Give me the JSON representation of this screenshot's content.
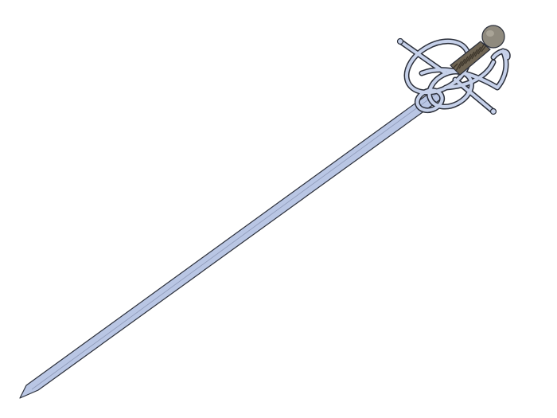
{
  "illustration": {
    "subject": "rapier-sword",
    "parts": [
      "blade",
      "swept-hilt-guard",
      "grip",
      "pommel"
    ]
  },
  "colors": {
    "background": "#ffffff",
    "blade": "#b9c6e4",
    "guard": "#b9c6e4",
    "outline": "#2b2f3a",
    "grip": "#6e6453",
    "grip_wrap": "#3e372c",
    "pommel": "#8f8a7e"
  }
}
